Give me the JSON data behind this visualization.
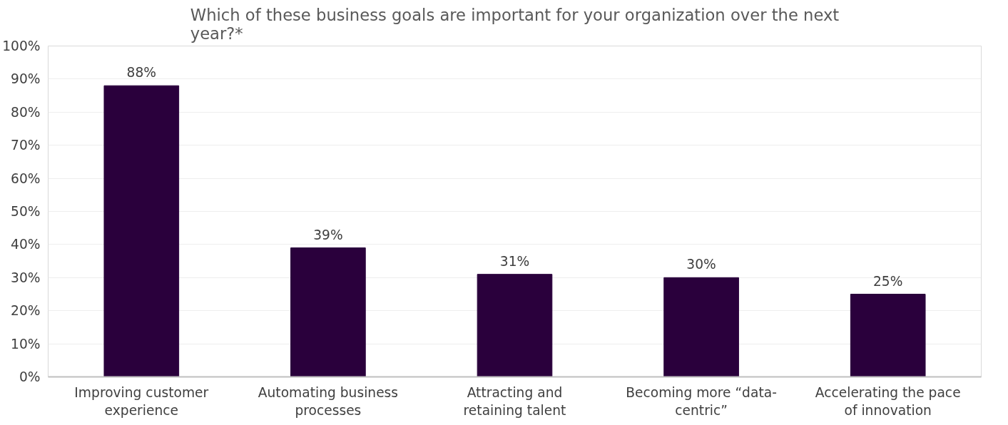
{
  "chart_data": {
    "type": "bar",
    "title": "Which of these business goals are important for your organization over the next year?*",
    "categories": [
      "Improving customer experience",
      "Automating business processes",
      "Attracting and retaining talent",
      "Becoming more “data-centric”",
      "Accelerating the pace of innovation"
    ],
    "values": [
      88,
      39,
      31,
      30,
      25
    ],
    "color": "#2a003c",
    "ylim": [
      0,
      100
    ],
    "yticks": [
      {
        "value": 0,
        "label": "0%"
      },
      {
        "value": 10,
        "label": "10%"
      },
      {
        "value": 20,
        "label": "20%"
      },
      {
        "value": 30,
        "label": "30%"
      },
      {
        "value": 40,
        "label": "40%"
      },
      {
        "value": 50,
        "label": "50%"
      },
      {
        "value": 60,
        "label": "60%"
      },
      {
        "value": 70,
        "label": "70%"
      },
      {
        "value": 80,
        "label": "80%"
      },
      {
        "value": 90,
        "label": "90%"
      },
      {
        "value": 100,
        "label": "100%"
      }
    ],
    "value_labels": [
      "88%",
      "39%",
      "31%",
      "30%",
      "25%"
    ],
    "grid": "y"
  }
}
